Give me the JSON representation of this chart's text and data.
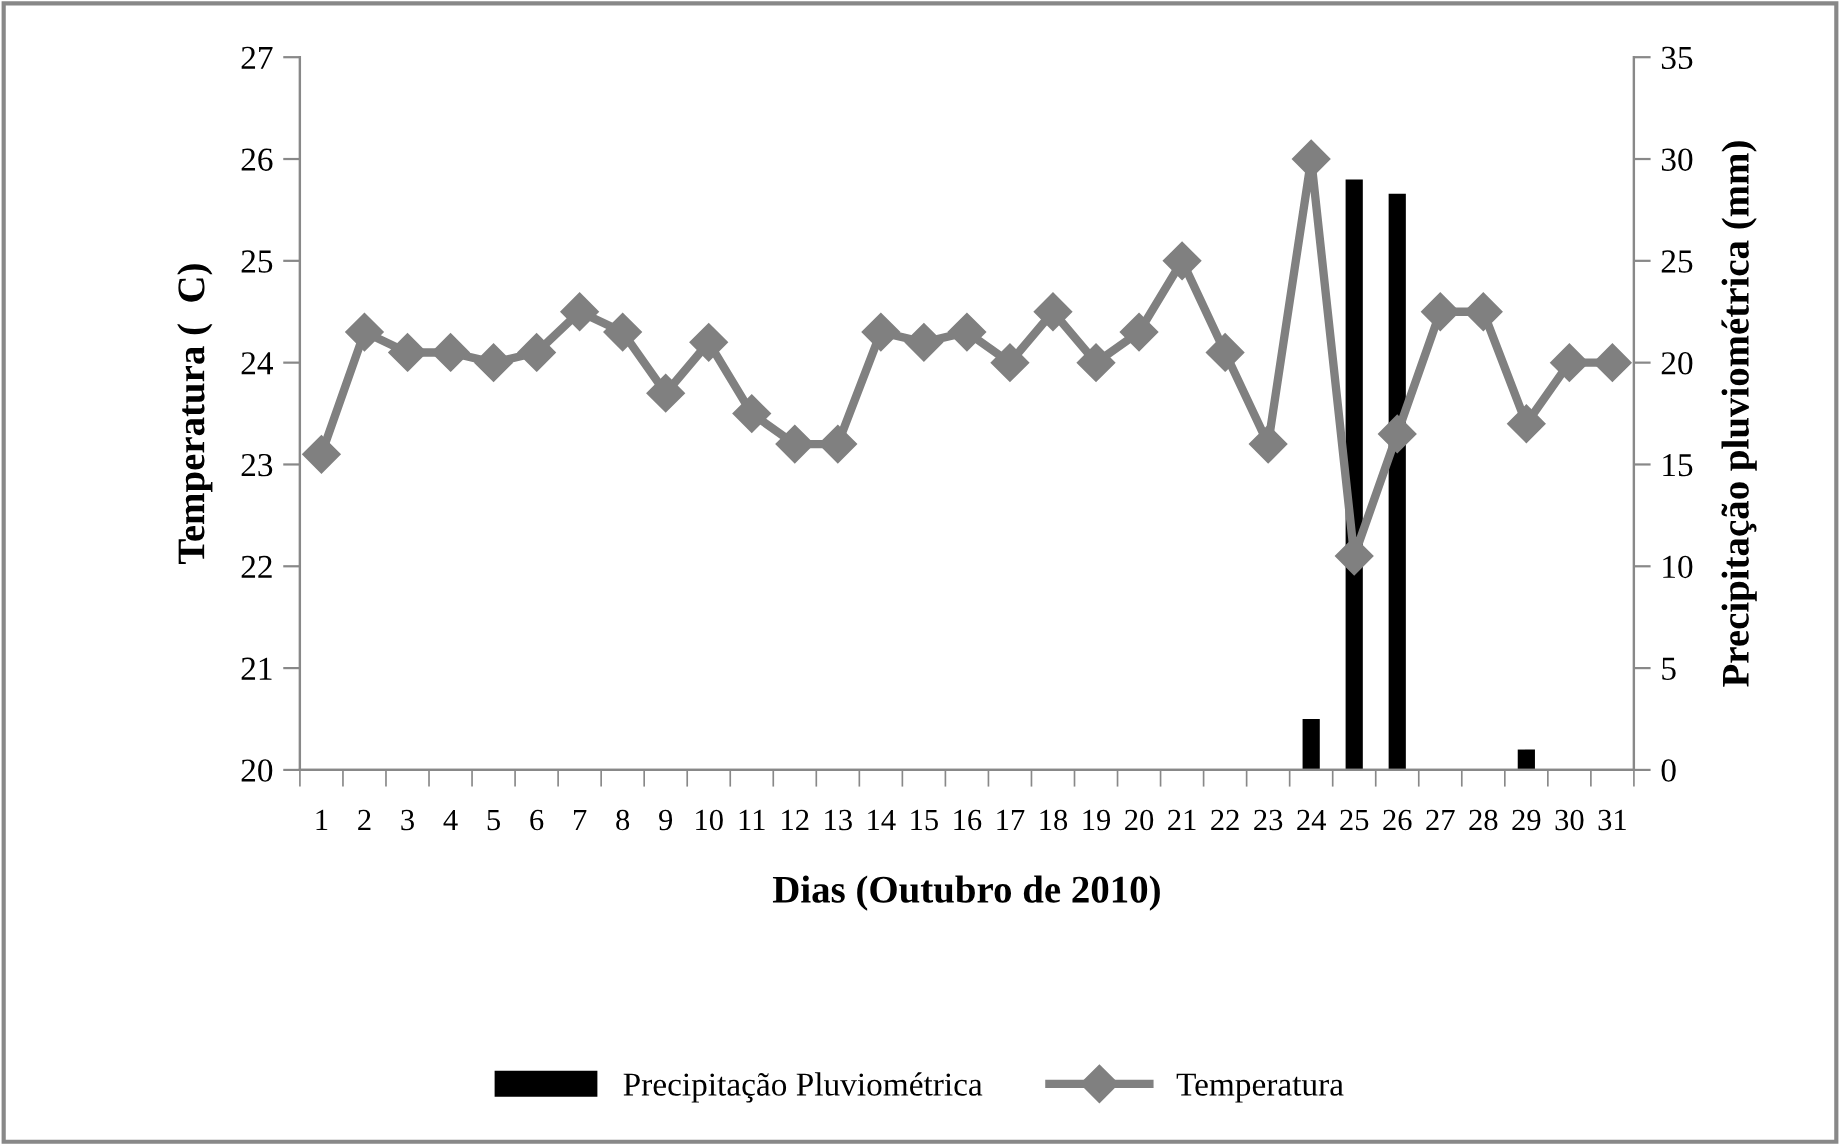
{
  "chart_data": {
    "type": "bar",
    "xlabel": "Dias (Outubro de 2010)",
    "ylabel": "Temperatura (  C)",
    "y2label": "Precipitação pluviométrica (mm)",
    "categories": [
      "1",
      "2",
      "3",
      "4",
      "5",
      "6",
      "7",
      "8",
      "9",
      "10",
      "11",
      "12",
      "13",
      "14",
      "15",
      "16",
      "17",
      "18",
      "19",
      "20",
      "21",
      "22",
      "23",
      "24",
      "25",
      "26",
      "27",
      "28",
      "29",
      "30",
      "31"
    ],
    "series": [
      {
        "name": "Precipitação Pluviométrica",
        "axis": "y2",
        "color": "#000000",
        "values": [
          0,
          0,
          0,
          0,
          0,
          0,
          0,
          0,
          0,
          0,
          0,
          0,
          0,
          0,
          0,
          0,
          0,
          0,
          0,
          0,
          0,
          0,
          0,
          2.5,
          29,
          28.3,
          0,
          0,
          1,
          0,
          0
        ]
      },
      {
        "name": "Temperatura",
        "type": "line",
        "color": "#808080",
        "marker": "diamond",
        "line_style": "solid",
        "values": [
          23.1,
          24.3,
          24.1,
          24.1,
          24.0,
          24.1,
          24.5,
          24.3,
          23.7,
          24.2,
          23.5,
          23.2,
          23.2,
          24.3,
          24.2,
          24.3,
          24.0,
          24.5,
          24.0,
          24.3,
          25.0,
          24.1,
          23.2,
          26.0,
          22.1,
          23.3,
          24.5,
          24.5,
          23.4,
          24.0,
          24.0
        ]
      }
    ],
    "ylim": [
      20,
      27
    ],
    "yticks": [
      20,
      21,
      22,
      23,
      24,
      25,
      26,
      27
    ],
    "y2lim": [
      0,
      35
    ],
    "y2ticks": [
      0,
      5,
      10,
      15,
      20,
      25,
      30,
      35
    ],
    "grid": false,
    "legend": "bottom"
  }
}
